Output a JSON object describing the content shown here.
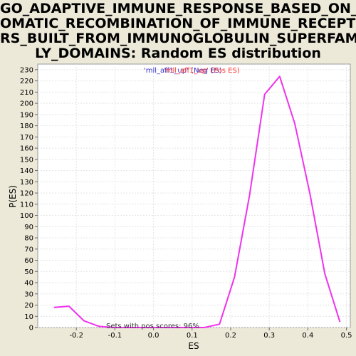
{
  "chart_data": {
    "type": "line",
    "title_lines": [
      "GO_ADAPTIVE_IMMUNE_RESPONSE_BASED_ON_S",
      "OMATIC_RECOMBINATION_OF_IMMUNE_RECEPTO",
      "RS_BUILT_FROM_IMMUNOGLOBULIN_SUPERFAMI",
      "LY_DOMAINS: Random ES distribution"
    ],
    "xlabel": "ES",
    "ylabel": "P(ES)",
    "xlim": [
      -0.3,
      0.51
    ],
    "ylim": [
      0,
      235
    ],
    "x_ticks": [
      -0.2,
      -0.1,
      0.0,
      0.1,
      0.2,
      0.3,
      0.4,
      0.5
    ],
    "x_tick_labels": [
      "-0.2",
      "-0.1",
      "0.0",
      "0.1",
      "0.2",
      "0.3",
      "0.4",
      "0.5"
    ],
    "y_ticks": [
      0,
      10,
      20,
      30,
      40,
      50,
      60,
      70,
      80,
      90,
      100,
      110,
      120,
      130,
      140,
      150,
      160,
      170,
      180,
      190,
      200,
      210,
      220,
      230
    ],
    "grid": true,
    "legend": [
      {
        "text": "'mll_aff1_up' (Neg ES)",
        "color": "#3333cc"
      },
      {
        "text": "'mll_aff1_up' (Pos ES)",
        "color": "#ff3333"
      }
    ],
    "legend_placement": "top-center",
    "annotation": "Sets with pos scores: 96%",
    "series": [
      {
        "color": "#ee33ee",
        "x": [
          -0.258,
          -0.219,
          -0.18,
          -0.141,
          -0.102,
          -0.063,
          -0.024,
          0.015,
          0.054,
          0.093,
          0.132,
          0.171,
          0.21,
          0.249,
          0.288,
          0.327,
          0.366,
          0.405,
          0.444,
          0.483
        ],
        "y": [
          18,
          19,
          6,
          1,
          0,
          0,
          0,
          0,
          0,
          0,
          0,
          3,
          45,
          118,
          208,
          224,
          182,
          120,
          48,
          5
        ]
      }
    ]
  }
}
